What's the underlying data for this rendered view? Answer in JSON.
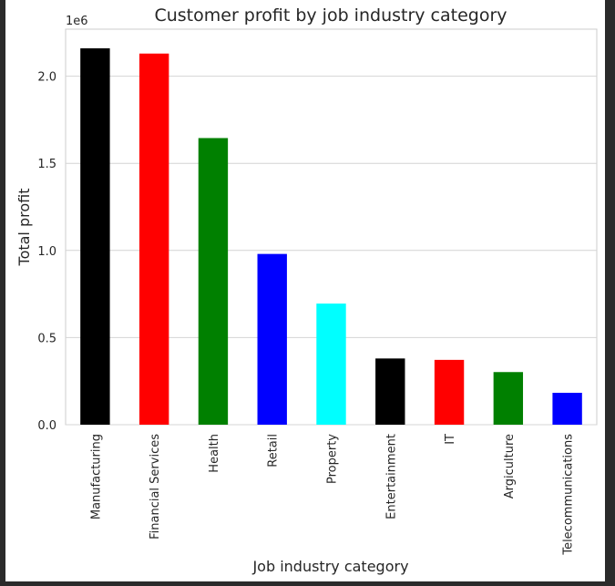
{
  "chart_data": {
    "type": "bar",
    "title": "Customer profit by job industry category",
    "xlabel": "Job industry category",
    "ylabel": "Total profit",
    "y_offset_label": "1e6",
    "categories": [
      "Manufacturing",
      "Financial Services",
      "Health",
      "Retail",
      "Property",
      "Entertainment",
      "IT",
      "Argiculture",
      "Telecommunications"
    ],
    "values": [
      2160000,
      2130000,
      1645000,
      980000,
      695000,
      380000,
      372000,
      302000,
      183000
    ],
    "bar_colors": [
      "#000000",
      "#ff0000",
      "#008000",
      "#0000ff",
      "#00ffff",
      "#000000",
      "#ff0000",
      "#008000",
      "#0000ff"
    ],
    "ylim": [
      0,
      2270000
    ],
    "yticks": [
      0,
      500000,
      1000000,
      1500000,
      2000000
    ],
    "ytick_labels": [
      "0.0",
      "0.5",
      "1.0",
      "1.5",
      "2.0"
    ],
    "grid": "horizontal",
    "legend": "none"
  }
}
